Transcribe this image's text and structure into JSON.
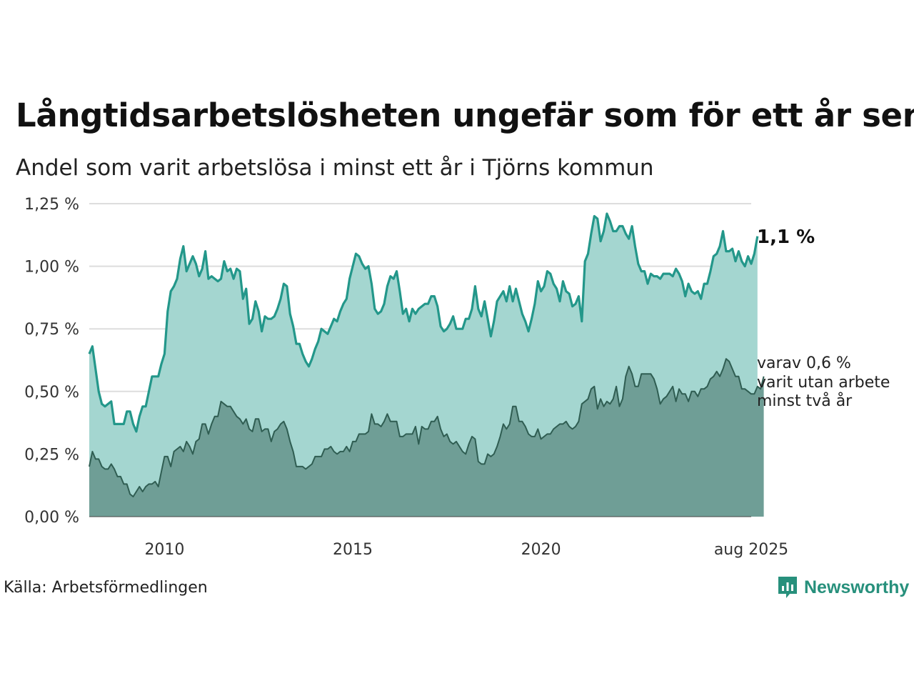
{
  "title": "Långtidsarbetslösheten ungefär som för ett år sen",
  "subtitle": "Andel som varit arbetslösa i minst ett år i Tjörns kommun",
  "source": "Källa: Arbetsförmedlingen",
  "logo_text": "Newsworthy",
  "end_label": "1,1 %",
  "note_lines": [
    "varav 0,6 %",
    "varit utan arbete",
    "minst två år"
  ],
  "colors": {
    "main_line": "#23978a",
    "main_fill": "#a4d6d0",
    "sub_line": "#2f5d52",
    "sub_fill": "#6f9e96",
    "grid": "#dddddd"
  },
  "chart_data": {
    "type": "area",
    "ylim": [
      0,
      1.25
    ],
    "yticks": [
      0,
      0.25,
      0.5,
      0.75,
      1.0,
      1.25
    ],
    "ytick_labels": [
      "0,00 %",
      "0,25 %",
      "0,50 %",
      "0,75 %",
      "1,00 %",
      "1,25 %"
    ],
    "xlim": [
      "2008-01",
      "2025-08"
    ],
    "xticks": [
      "2010-01",
      "2015-01",
      "2020-01",
      "2025-08"
    ],
    "xtick_labels": [
      "2010",
      "2015",
      "2020",
      "aug 2025"
    ],
    "grid": true,
    "series": [
      {
        "name": "",
        "start": "2008-01",
        "values": [
          0.65,
          0.68,
          0.59,
          0.5,
          0.45,
          0.44,
          0.45,
          0.46,
          0.37,
          0.37,
          0.37,
          0.37,
          0.42,
          0.42,
          0.37,
          0.34,
          0.4,
          0.44,
          0.44,
          0.5,
          0.56,
          0.56,
          0.56,
          0.61,
          0.65,
          0.82,
          0.9,
          0.92,
          0.95,
          1.03,
          1.08,
          0.98,
          1.01,
          1.04,
          1.01,
          0.96,
          0.99,
          1.06,
          0.95,
          0.96,
          0.95,
          0.94,
          0.95,
          1.02,
          0.98,
          0.99,
          0.95,
          0.99,
          0.98,
          0.87,
          0.91,
          0.77,
          0.79,
          0.86,
          0.82,
          0.74,
          0.8,
          0.79,
          0.79,
          0.8,
          0.83,
          0.87,
          0.93,
          0.92,
          0.81,
          0.76,
          0.69,
          0.69,
          0.65,
          0.62,
          0.6,
          0.63,
          0.67,
          0.7,
          0.75,
          0.74,
          0.73,
          0.76,
          0.79,
          0.78,
          0.82,
          0.85,
          0.87,
          0.95,
          1.0,
          1.05,
          1.04,
          1.01,
          0.99,
          1.0,
          0.93,
          0.83,
          0.81,
          0.82,
          0.85,
          0.92,
          0.96,
          0.95,
          0.98,
          0.9,
          0.81,
          0.83,
          0.78,
          0.83,
          0.81,
          0.83,
          0.84,
          0.85,
          0.85,
          0.88,
          0.88,
          0.84,
          0.76,
          0.74,
          0.75,
          0.77,
          0.8,
          0.75,
          0.75,
          0.75,
          0.79,
          0.79,
          0.83,
          0.92,
          0.83,
          0.8,
          0.86,
          0.79,
          0.72,
          0.78,
          0.86,
          0.88,
          0.9,
          0.86,
          0.92,
          0.86,
          0.91,
          0.86,
          0.81,
          0.78,
          0.74,
          0.79,
          0.85,
          0.94,
          0.9,
          0.92,
          0.98,
          0.97,
          0.93,
          0.91,
          0.86,
          0.94,
          0.9,
          0.89,
          0.84,
          0.85,
          0.88,
          0.78,
          1.02,
          1.05,
          1.13,
          1.2,
          1.19,
          1.1,
          1.14,
          1.21,
          1.18,
          1.14,
          1.14,
          1.16,
          1.16,
          1.13,
          1.11,
          1.16,
          1.08,
          1.01,
          0.98,
          0.98,
          0.93,
          0.97,
          0.96,
          0.96,
          0.95,
          0.97,
          0.97,
          0.97,
          0.96,
          0.99,
          0.97,
          0.94,
          0.88,
          0.93,
          0.9,
          0.89,
          0.9,
          0.87,
          0.93,
          0.93,
          0.98,
          1.04,
          1.05,
          1.08,
          1.14,
          1.06,
          1.06,
          1.07,
          1.02,
          1.06,
          1.02,
          1.0,
          1.04,
          1.01,
          1.05,
          1.12
        ]
      },
      {
        "name": "",
        "start": "2008-01",
        "values": [
          0.2,
          0.26,
          0.23,
          0.23,
          0.2,
          0.19,
          0.19,
          0.21,
          0.19,
          0.16,
          0.16,
          0.13,
          0.13,
          0.09,
          0.08,
          0.1,
          0.12,
          0.1,
          0.12,
          0.13,
          0.13,
          0.14,
          0.12,
          0.18,
          0.24,
          0.24,
          0.2,
          0.26,
          0.27,
          0.28,
          0.26,
          0.3,
          0.28,
          0.25,
          0.3,
          0.31,
          0.37,
          0.37,
          0.33,
          0.37,
          0.4,
          0.4,
          0.46,
          0.45,
          0.44,
          0.44,
          0.42,
          0.4,
          0.39,
          0.37,
          0.39,
          0.35,
          0.34,
          0.39,
          0.39,
          0.34,
          0.35,
          0.35,
          0.3,
          0.34,
          0.35,
          0.37,
          0.38,
          0.35,
          0.3,
          0.26,
          0.2,
          0.2,
          0.2,
          0.19,
          0.2,
          0.21,
          0.24,
          0.24,
          0.24,
          0.27,
          0.27,
          0.28,
          0.26,
          0.25,
          0.26,
          0.26,
          0.28,
          0.26,
          0.3,
          0.3,
          0.33,
          0.33,
          0.33,
          0.34,
          0.41,
          0.37,
          0.37,
          0.36,
          0.38,
          0.41,
          0.38,
          0.38,
          0.38,
          0.32,
          0.32,
          0.33,
          0.33,
          0.33,
          0.36,
          0.29,
          0.36,
          0.35,
          0.35,
          0.38,
          0.38,
          0.4,
          0.35,
          0.32,
          0.33,
          0.3,
          0.29,
          0.3,
          0.28,
          0.26,
          0.25,
          0.29,
          0.32,
          0.31,
          0.22,
          0.21,
          0.21,
          0.25,
          0.24,
          0.25,
          0.28,
          0.32,
          0.37,
          0.35,
          0.37,
          0.44,
          0.44,
          0.38,
          0.38,
          0.36,
          0.33,
          0.32,
          0.32,
          0.35,
          0.31,
          0.32,
          0.33,
          0.33,
          0.35,
          0.36,
          0.37,
          0.37,
          0.38,
          0.36,
          0.35,
          0.36,
          0.38,
          0.45,
          0.46,
          0.47,
          0.51,
          0.52,
          0.43,
          0.47,
          0.44,
          0.46,
          0.45,
          0.47,
          0.52,
          0.44,
          0.47,
          0.56,
          0.6,
          0.57,
          0.52,
          0.52,
          0.57,
          0.57,
          0.57,
          0.57,
          0.55,
          0.51,
          0.45,
          0.47,
          0.48,
          0.5,
          0.52,
          0.46,
          0.51,
          0.49,
          0.49,
          0.46,
          0.5,
          0.5,
          0.48,
          0.51,
          0.51,
          0.52,
          0.55,
          0.56,
          0.58,
          0.56,
          0.59,
          0.63,
          0.62,
          0.59,
          0.56,
          0.56,
          0.51,
          0.51,
          0.5,
          0.49,
          0.49,
          0.52,
          0.51,
          0.56
        ]
      }
    ]
  }
}
